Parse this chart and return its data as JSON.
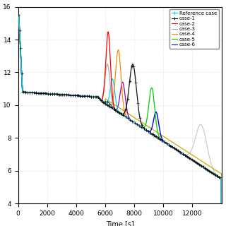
{
  "xlabel": "Time [s]",
  "xlim": [
    0,
    14000
  ],
  "ylim": [
    4,
    16
  ],
  "yticks": [
    4,
    6,
    8,
    10,
    12,
    14,
    16
  ],
  "xticks": [
    0,
    2000,
    4000,
    6000,
    8000,
    10000,
    12000
  ],
  "legend_entries": [
    "Reference case",
    "case-1",
    "case-2",
    "case-3",
    "case-4",
    "case-5",
    "case-6"
  ],
  "figsize": [
    3.2,
    3.2
  ],
  "dpi": 100,
  "background_color": "#ffffff",
  "grid_color": "#c8c8c8",
  "legend_colors": [
    "#00ccee",
    "#000000",
    "#ff0000",
    "#aaaaaa",
    "#ff8800",
    "#00cc00",
    "#0000ff"
  ],
  "extra_colors": [
    "#00ccff",
    "#cc00cc",
    "#ffff00",
    "#dddddd"
  ]
}
